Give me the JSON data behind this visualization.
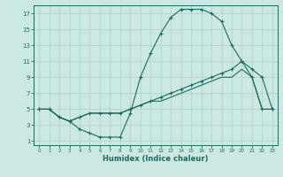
{
  "xlabel": "Humidex (Indice chaleur)",
  "bg_color": "#cce8e5",
  "line_color": "#1a6b5e",
  "grid_color": "#aecfcc",
  "xlim": [
    -0.5,
    23.5
  ],
  "ylim": [
    0.5,
    18.0
  ],
  "xticks": [
    0,
    1,
    2,
    3,
    4,
    5,
    6,
    7,
    8,
    9,
    10,
    11,
    12,
    13,
    14,
    15,
    16,
    17,
    18,
    19,
    20,
    21,
    22,
    23
  ],
  "yticks": [
    1,
    3,
    5,
    7,
    9,
    11,
    13,
    15,
    17
  ],
  "line1_x": [
    0,
    1,
    2,
    3,
    4,
    5,
    6,
    7,
    8,
    9,
    10,
    11,
    12,
    13,
    14,
    15,
    16,
    17,
    18,
    19,
    20,
    21,
    22,
    23
  ],
  "line1_y": [
    5,
    5,
    4,
    3.5,
    2.5,
    2,
    1.5,
    1.5,
    1.5,
    4.5,
    9,
    12,
    14.5,
    16.5,
    17.5,
    17.5,
    17.5,
    17,
    16,
    13,
    11,
    9,
    5,
    5
  ],
  "line2_x": [
    0,
    1,
    2,
    3,
    4,
    5,
    6,
    7,
    8,
    9,
    10,
    11,
    12,
    13,
    14,
    15,
    16,
    17,
    18,
    19,
    20,
    21,
    22,
    23
  ],
  "line2_y": [
    5,
    5,
    4,
    3.5,
    4,
    4.5,
    4.5,
    4.5,
    4.5,
    5,
    5.5,
    6,
    6.5,
    7,
    7.5,
    8,
    8.5,
    9,
    9.5,
    10,
    11,
    10,
    9,
    5
  ],
  "line3_x": [
    0,
    1,
    2,
    3,
    4,
    5,
    6,
    7,
    8,
    9,
    10,
    11,
    12,
    13,
    14,
    15,
    16,
    17,
    18,
    19,
    20,
    21,
    22,
    23
  ],
  "line3_y": [
    5,
    5,
    4,
    3.5,
    4,
    4.5,
    4.5,
    4.5,
    4.5,
    5,
    5.5,
    6,
    6,
    6.5,
    7,
    7.5,
    8,
    8.5,
    9,
    9,
    10,
    9,
    5,
    5
  ]
}
